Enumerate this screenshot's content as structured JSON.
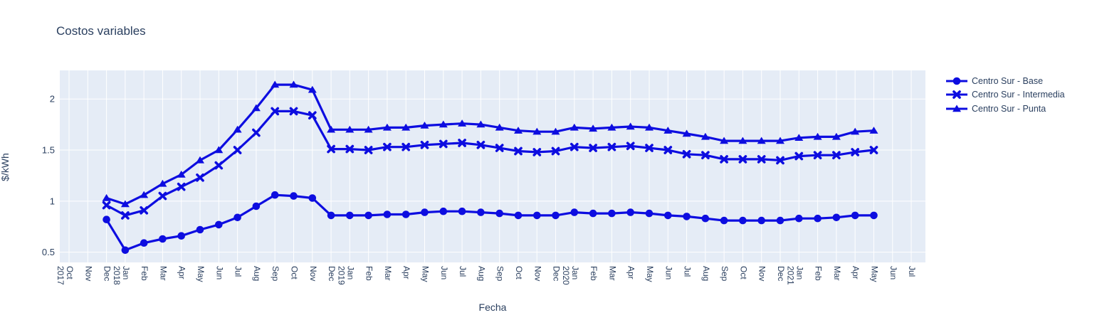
{
  "title": "Costos variables",
  "chart_data": {
    "type": "line",
    "title": "Costos variables",
    "xlabel": "Fecha",
    "ylabel": "$/kWh",
    "x_tick_labels": [
      "Oct 2017",
      "Nov",
      "Dec",
      "Jan 2018",
      "Feb",
      "Mar",
      "Apr",
      "May",
      "Jun",
      "Jul",
      "Aug",
      "Sep",
      "Oct",
      "Nov",
      "Dec",
      "Jan 2019",
      "Feb",
      "Mar",
      "Apr",
      "May",
      "Jun",
      "Jul",
      "Aug",
      "Sep",
      "Oct",
      "Nov",
      "Dec",
      "Jan 2020",
      "Feb",
      "Mar",
      "Apr",
      "May",
      "Jun",
      "Jul",
      "Aug",
      "Sep",
      "Oct",
      "Nov",
      "Dec",
      "Jan 2021",
      "Feb",
      "Mar",
      "Apr",
      "May",
      "Jun",
      "Jul"
    ],
    "y_ticks": [
      "0.5",
      "1",
      "1.5",
      "2"
    ],
    "y_tick_values": [
      0.5,
      1.0,
      1.5,
      2.0
    ],
    "ylim": [
      0.4,
      2.28
    ],
    "series_start_tick_index": 2,
    "grid": true,
    "legend_position": "right",
    "series": [
      {
        "name": "Centro Sur - Base",
        "marker": "circle",
        "values": [
          0.82,
          0.52,
          0.59,
          0.63,
          0.66,
          0.72,
          0.77,
          0.84,
          0.95,
          1.06,
          1.05,
          1.03,
          0.86,
          0.86,
          0.86,
          0.87,
          0.87,
          0.89,
          0.9,
          0.9,
          0.89,
          0.88,
          0.86,
          0.86,
          0.86,
          0.89,
          0.88,
          0.88,
          0.89,
          0.88,
          0.86,
          0.85,
          0.83,
          0.81,
          0.81,
          0.81,
          0.81,
          0.83,
          0.83,
          0.84,
          0.86,
          0.86
        ]
      },
      {
        "name": "Centro Sur - Intermedia",
        "marker": "x",
        "values": [
          0.96,
          0.86,
          0.91,
          1.05,
          1.14,
          1.23,
          1.35,
          1.5,
          1.67,
          1.88,
          1.88,
          1.84,
          1.51,
          1.51,
          1.5,
          1.53,
          1.53,
          1.55,
          1.56,
          1.57,
          1.55,
          1.52,
          1.49,
          1.48,
          1.49,
          1.53,
          1.52,
          1.53,
          1.54,
          1.52,
          1.5,
          1.46,
          1.45,
          1.41,
          1.41,
          1.41,
          1.4,
          1.44,
          1.45,
          1.45,
          1.48,
          1.5
        ]
      },
      {
        "name": "Centro Sur - Punta",
        "marker": "triangle",
        "values": [
          1.03,
          0.97,
          1.06,
          1.17,
          1.26,
          1.4,
          1.5,
          1.7,
          1.91,
          2.14,
          2.14,
          2.09,
          1.7,
          1.7,
          1.7,
          1.72,
          1.72,
          1.74,
          1.75,
          1.76,
          1.75,
          1.72,
          1.69,
          1.68,
          1.68,
          1.72,
          1.71,
          1.72,
          1.73,
          1.72,
          1.69,
          1.66,
          1.63,
          1.59,
          1.59,
          1.59,
          1.59,
          1.62,
          1.63,
          1.63,
          1.68,
          1.69
        ]
      }
    ],
    "colors": {
      "line": "#0d0de0",
      "plot_bg": "#e5ecf6",
      "grid": "#ffffff",
      "text": "#2a3f5f"
    }
  }
}
